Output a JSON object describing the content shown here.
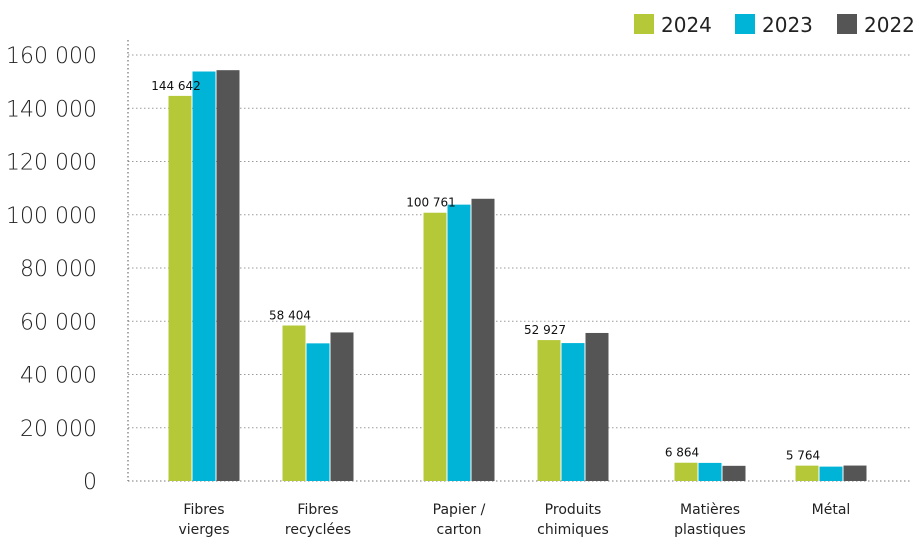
{
  "chart_data": {
    "type": "bar",
    "categories": [
      [
        "Fibres",
        "vierges"
      ],
      [
        "Fibres",
        "recyclées"
      ],
      [
        "Papier /",
        "carton"
      ],
      [
        "Produits",
        "chimiques"
      ],
      [
        "Matières",
        "plastiques"
      ],
      [
        "Métal"
      ]
    ],
    "series": [
      {
        "name": "2024",
        "color": "#b5c938",
        "values": [
          144642,
          58404,
          100761,
          52927,
          6864,
          5764
        ]
      },
      {
        "name": "2023",
        "color": "#00b4d8",
        "values": [
          153800,
          51700,
          103800,
          51800,
          6800,
          5400
        ]
      },
      {
        "name": "2022",
        "color": "#555555",
        "values": [
          154300,
          55800,
          106000,
          55600,
          5700,
          5800
        ]
      }
    ],
    "data_labels": [
      "144 642",
      "58 404",
      "100 761",
      "52 927",
      "6 864",
      "5 764"
    ],
    "yticks": [
      0,
      20000,
      40000,
      60000,
      80000,
      100000,
      120000,
      140000,
      160000
    ],
    "ytick_labels": [
      "0",
      "20 000",
      "40 000",
      "60 000",
      "80 000",
      "100 000",
      "120 000",
      "140 000",
      "160 000"
    ],
    "ylim": [
      0,
      160000
    ],
    "grid": true,
    "legend": "top-right",
    "title": "",
    "xlabel": "",
    "ylabel": ""
  }
}
